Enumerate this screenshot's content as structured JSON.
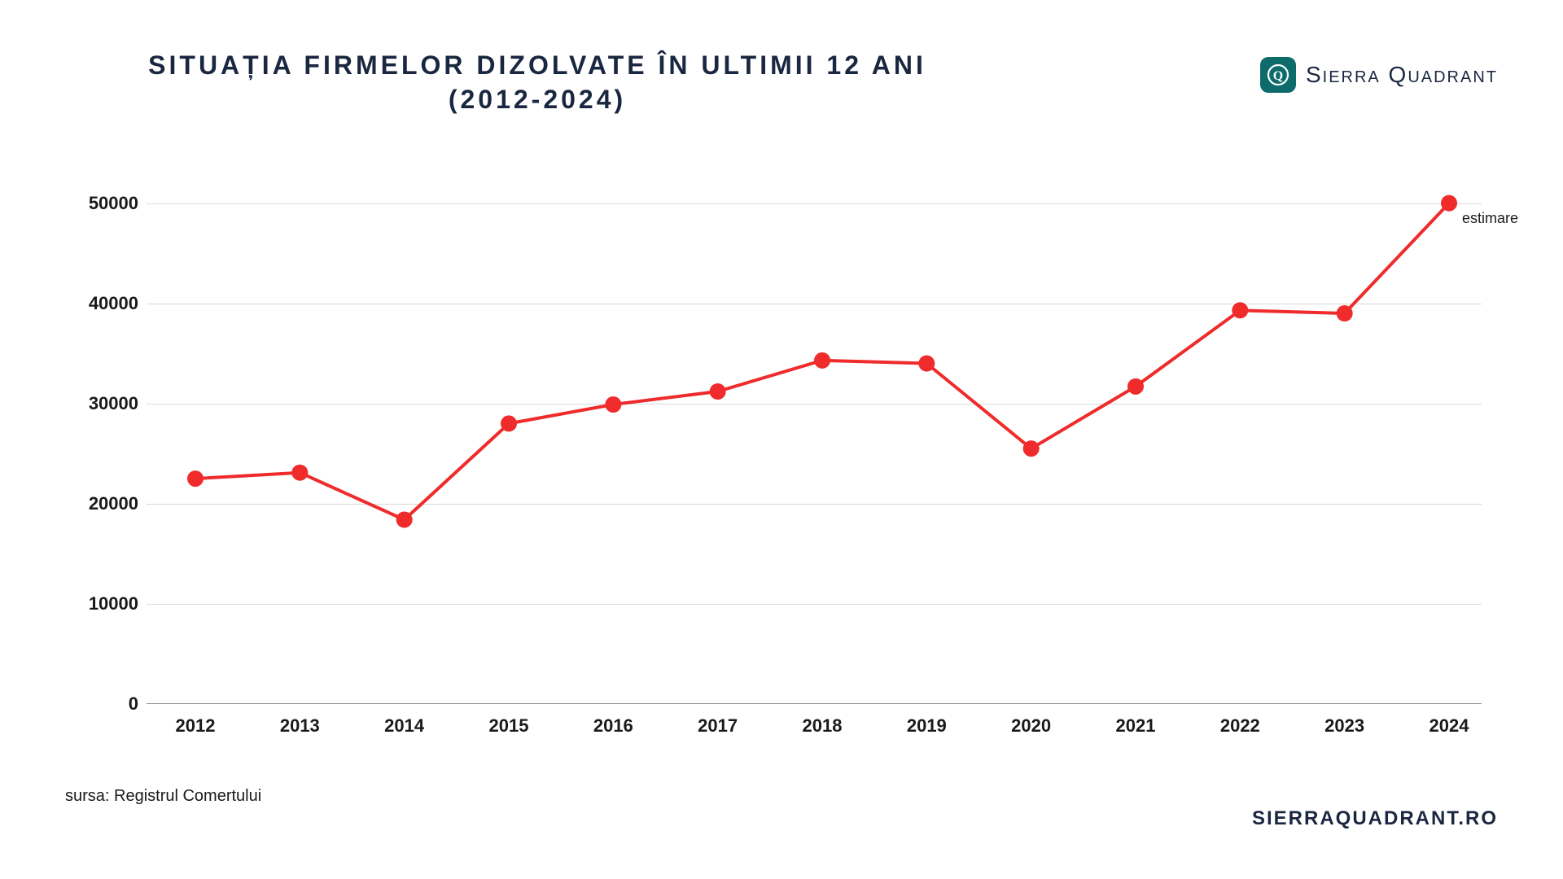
{
  "title_line1": "SITUAȚIA FIRMELOR DIZOLVATE ÎN ULTIMII 12 ANI",
  "title_line2": "(2012-2024)",
  "logo_text": "Sierra Quadrant",
  "source_label": "sursa: Registrul Comertului",
  "website": "SIERRAQUADRANT.RO",
  "annotation_text": "estimare",
  "chart": {
    "type": "line",
    "x_categories": [
      "2012",
      "2013",
      "2014",
      "2015",
      "2016",
      "2017",
      "2018",
      "2019",
      "2020",
      "2021",
      "2022",
      "2023",
      "2024"
    ],
    "y_values": [
      22500,
      23100,
      18400,
      28000,
      29900,
      31200,
      34300,
      34000,
      25500,
      31700,
      39300,
      39000,
      50000
    ],
    "ylim": [
      0,
      52000
    ],
    "y_ticks": [
      0,
      10000,
      20000,
      30000,
      40000,
      50000
    ],
    "y_tick_labels": [
      "0",
      "10000",
      "20000",
      "30000",
      "40000",
      "50000"
    ],
    "line_color": "#ef2b2b",
    "line_width": 4,
    "marker_color": "#ef2b2b",
    "marker_radius": 10,
    "grid_color": "#d9d9d9",
    "axis_color": "#969696",
    "background_color": "#ffffff",
    "title_color": "#1a2740",
    "label_color": "#1a1a1a",
    "tick_fontsize": 22,
    "title_fontsize": 32,
    "annotation_fontsize": 18,
    "annotation_point_index": 12
  }
}
